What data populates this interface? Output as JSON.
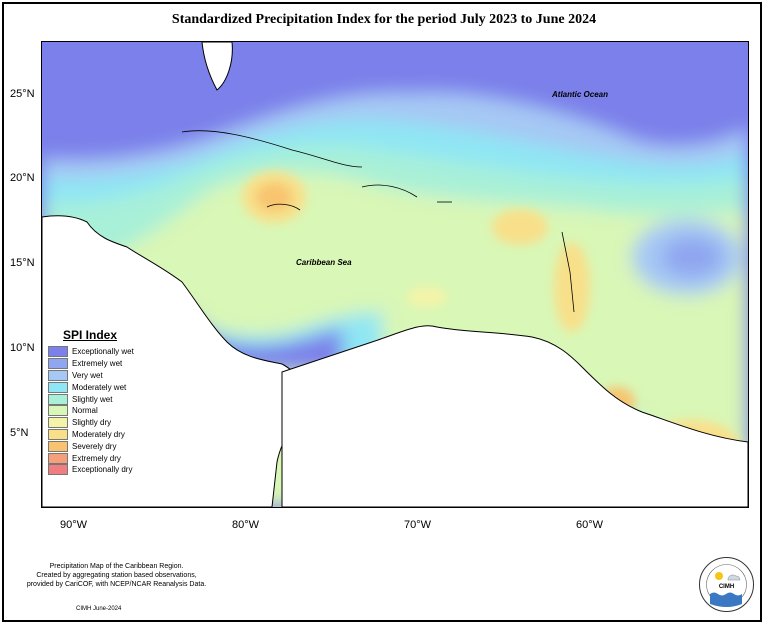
{
  "title": "Standardized Precipitation Index for the period July 2023 to June 2024",
  "map_labels": {
    "atlantic": "Atlantic Ocean",
    "caribbean": "Caribbean Sea"
  },
  "lat_ticks": [
    "25°N",
    "20°N",
    "15°N",
    "10°N",
    "5°N"
  ],
  "lon_ticks": [
    "90°W",
    "80°W",
    "70°W",
    "60°W"
  ],
  "legend": {
    "title": "SPI Index",
    "items": [
      {
        "label": "Exceptionally wet",
        "color": "#7b80ea"
      },
      {
        "label": "Extremely wet",
        "color": "#8fa6f0"
      },
      {
        "label": "Very wet",
        "color": "#a6c8f4"
      },
      {
        "label": "Moderately wet",
        "color": "#8fe6f4"
      },
      {
        "label": "Slightly wet",
        "color": "#a8f0d8"
      },
      {
        "label": "Normal",
        "color": "#d9f7b6"
      },
      {
        "label": "Slightly dry",
        "color": "#f4f4a8"
      },
      {
        "label": "Moderately dry",
        "color": "#fadf8a"
      },
      {
        "label": "Severely dry",
        "color": "#f8c470"
      },
      {
        "label": "Extremely dry",
        "color": "#f5a07a"
      },
      {
        "label": "Exceptionally dry",
        "color": "#f07d80"
      }
    ]
  },
  "footer": {
    "line1": "Precipitation Map of the Caribbean Region.",
    "line2": "Created by aggregating station based observations,",
    "line3": "provided by CariCOF, with NCEP/NCAR Reanalysis Data.",
    "date": "CIMH June-2024"
  },
  "logo": {
    "text": "CIMH"
  }
}
